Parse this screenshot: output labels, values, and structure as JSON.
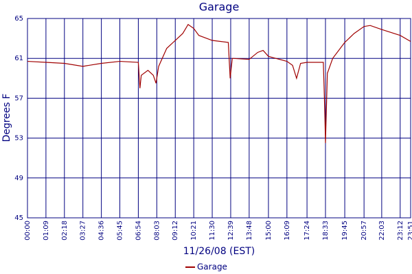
{
  "chart_data": {
    "type": "line",
    "title": "Garage",
    "xlabel": "11/26/08 (EST)",
    "ylabel": "Degrees F",
    "x": [
      0,
      69,
      138,
      207,
      276,
      345,
      414,
      420,
      425,
      450,
      470,
      480,
      490,
      520,
      552,
      580,
      600,
      621,
      640,
      690,
      750,
      757,
      765,
      828,
      860,
      880,
      900,
      969,
      990,
      1005,
      1020,
      1044,
      1105,
      1110,
      1113,
      1120,
      1140,
      1185,
      1220,
      1257,
      1280,
      1323,
      1392,
      1431
    ],
    "series": [
      {
        "name": "Garage",
        "color": "#a00000",
        "values": [
          60.7,
          60.6,
          60.5,
          60.2,
          60.5,
          60.7,
          60.6,
          58.0,
          59.3,
          59.8,
          59.3,
          58.5,
          60.2,
          62.0,
          62.8,
          63.5,
          64.4,
          64.0,
          63.3,
          62.8,
          62.6,
          59.0,
          61.0,
          60.9,
          61.6,
          61.8,
          61.2,
          60.7,
          60.3,
          59.0,
          60.5,
          60.6,
          60.6,
          56.0,
          52.5,
          59.5,
          61.0,
          62.6,
          63.5,
          64.2,
          64.3,
          63.9,
          63.3,
          62.7
        ]
      }
    ],
    "xlim": [
      0,
      1431
    ],
    "xticks": [
      {
        "value": 0,
        "label": "00:00"
      },
      {
        "value": 69,
        "label": "01:09"
      },
      {
        "value": 138,
        "label": "02:18"
      },
      {
        "value": 207,
        "label": "03:27"
      },
      {
        "value": 276,
        "label": "04:36"
      },
      {
        "value": 345,
        "label": "05:45"
      },
      {
        "value": 414,
        "label": "06:54"
      },
      {
        "value": 483,
        "label": "08:03"
      },
      {
        "value": 552,
        "label": "09:12"
      },
      {
        "value": 621,
        "label": "10:21"
      },
      {
        "value": 690,
        "label": "11:30"
      },
      {
        "value": 759,
        "label": "12:39"
      },
      {
        "value": 828,
        "label": "13:48"
      },
      {
        "value": 900,
        "label": "15:00"
      },
      {
        "value": 969,
        "label": "16:09"
      },
      {
        "value": 1044,
        "label": "17:24"
      },
      {
        "value": 1113,
        "label": "18:33"
      },
      {
        "value": 1185,
        "label": "19:45"
      },
      {
        "value": 1257,
        "label": "20:57"
      },
      {
        "value": 1323,
        "label": "22:03"
      },
      {
        "value": 1392,
        "label": "23:12"
      },
      {
        "value": 1431,
        "label": "23:51"
      }
    ],
    "ylim": [
      45,
      65
    ],
    "yticks": [
      45,
      49,
      53,
      57,
      61,
      65
    ],
    "grid": true
  }
}
